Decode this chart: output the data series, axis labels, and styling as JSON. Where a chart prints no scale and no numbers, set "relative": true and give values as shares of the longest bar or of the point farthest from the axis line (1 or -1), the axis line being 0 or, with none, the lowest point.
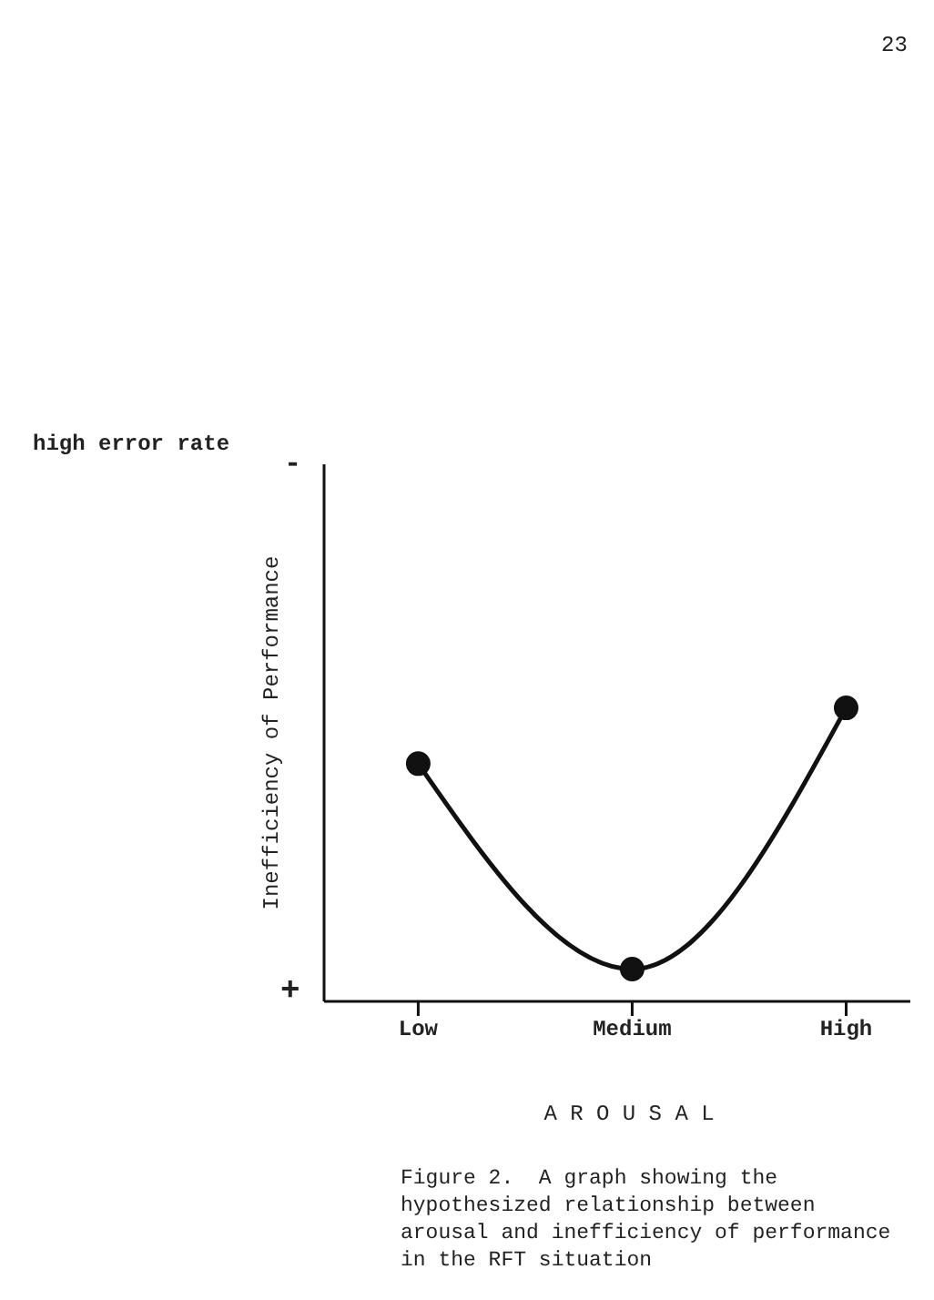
{
  "chart_data": {
    "type": "line",
    "categories": [
      "Low",
      "Medium",
      "High"
    ],
    "values": [
      0.81,
      0.11,
      1
    ],
    "color": "#111111",
    "relative": true,
    "marker": "circle",
    "xlabel": "A R O U S A L",
    "ylabel": "Inefficiency of Performance",
    "annotations": [
      "23",
      "high error rate",
      "-",
      "+",
      "Figure 2.  A graph showing the hypothesized relationship between arousal and inefficiency of performance in the RFT situation"
    ]
  }
}
